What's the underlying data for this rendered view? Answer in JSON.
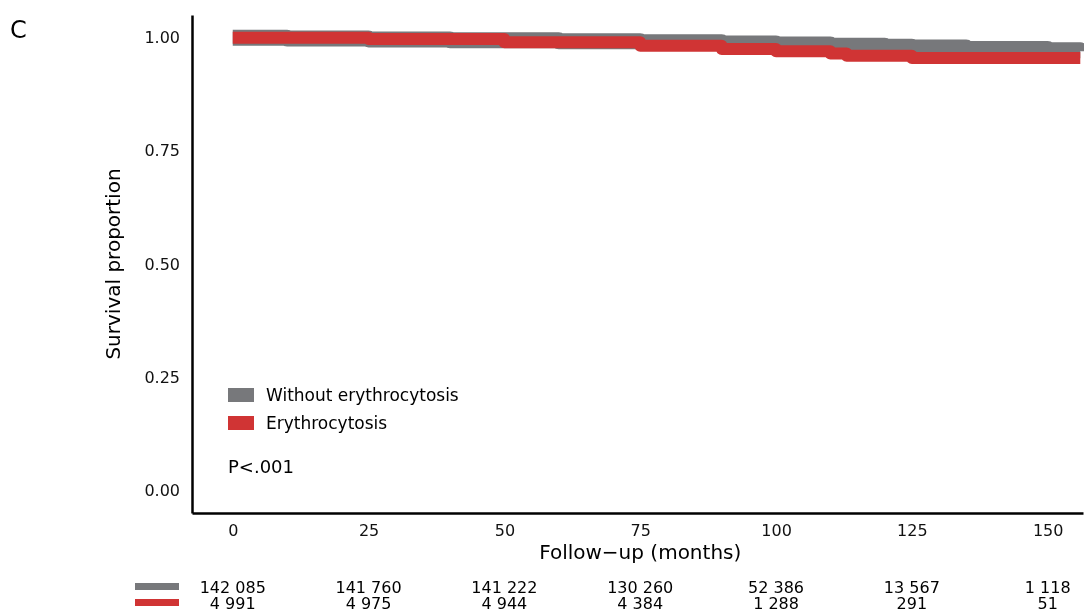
{
  "chart_data": {
    "type": "step",
    "title": "C",
    "xlabel": "Follow−up (months)",
    "ylabel": "Survival proportion",
    "xlim": [
      -7.5,
      156.5
    ],
    "xticks": [
      0,
      25,
      50,
      75,
      100,
      125,
      150
    ],
    "ylim": [
      -0.05,
      1.05
    ],
    "yticks": [
      {
        "value": 0,
        "label": "0.00"
      },
      {
        "value": 0.25,
        "label": "0.25"
      },
      {
        "value": 0.5,
        "label": "0.50"
      },
      {
        "value": 0.75,
        "label": "0.75"
      },
      {
        "value": 1,
        "label": "1.00"
      }
    ],
    "grid": false,
    "legend": "bottom left",
    "marker": "none",
    "line_style": "solid",
    "series": [
      {
        "name": "Without erythrocytosis",
        "color": "#77787b",
        "x": [
          0,
          10,
          25,
          40,
          60,
          75,
          90,
          100,
          110,
          120,
          125,
          135,
          150,
          156
        ],
        "values": [
          1,
          0.998,
          0.996,
          0.994,
          0.992,
          0.99,
          0.987,
          0.985,
          0.982,
          0.98,
          0.978,
          0.975,
          0.972,
          0.97
        ]
      },
      {
        "name": "Erythrocytosis",
        "color": "#d03434",
        "x": [
          0,
          25,
          50,
          75,
          90,
          100,
          110,
          113,
          125,
          156
        ],
        "values": [
          1,
          0.997,
          0.99,
          0.982,
          0.975,
          0.97,
          0.965,
          0.96,
          0.955,
          0.955
        ]
      }
    ],
    "annotations": [
      "P<.001",
      "142 085",
      "141 760",
      "141 222",
      "130 260",
      "52 386",
      "13 567",
      "1 118",
      "4 991",
      "4 975",
      "4 944",
      "4 384",
      "1 288",
      "291",
      "51"
    ]
  }
}
